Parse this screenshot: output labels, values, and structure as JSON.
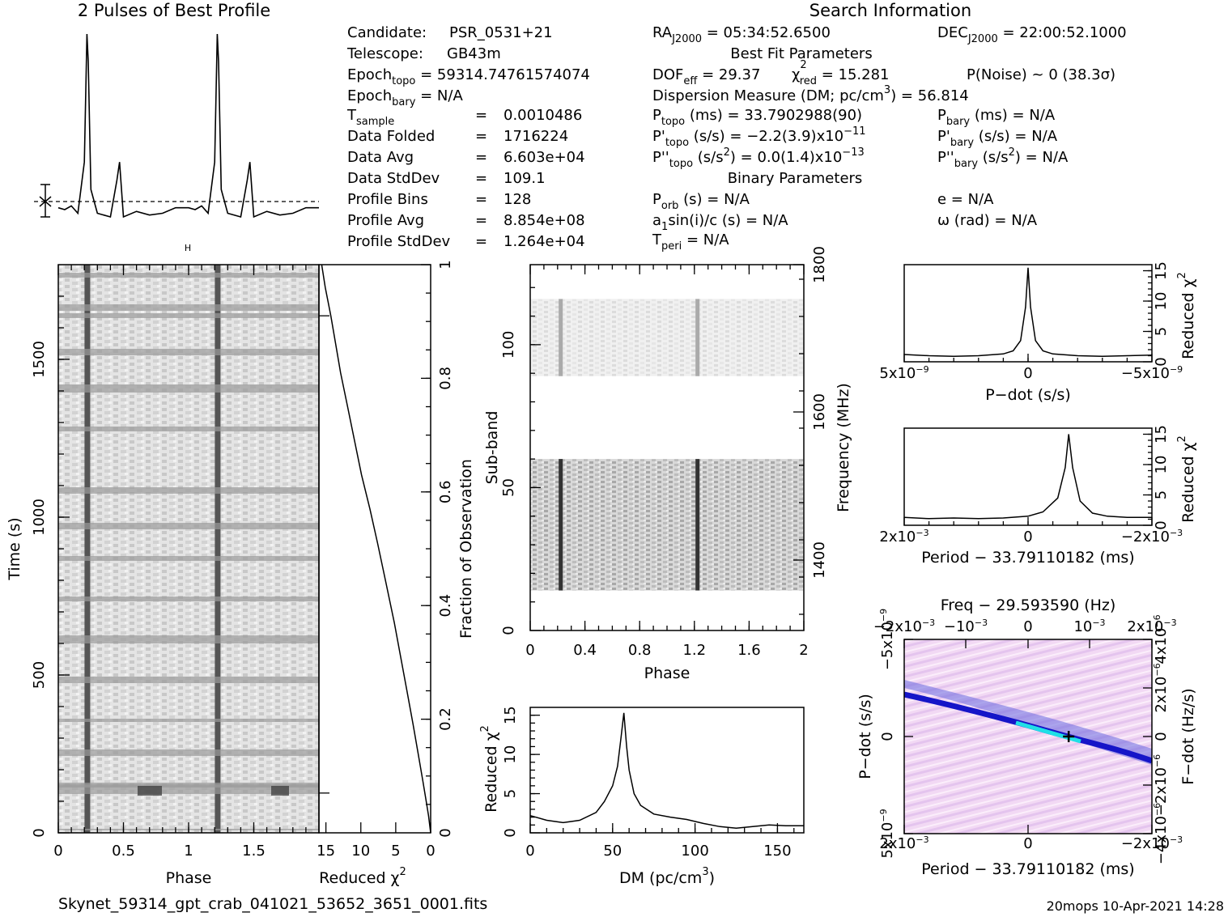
{
  "header": {
    "left_title": "2 Pulses of Best Profile",
    "right_title": "Search Information",
    "footer_file": "Skynet_59314_gpt_crab_041021_53652_3651_0001.fits",
    "footer_stamp": "20mops 10-Apr-2021 14:28"
  },
  "info": {
    "candidate": {
      "label": "Candidate:",
      "value": "PSR_0531+21"
    },
    "telescope": {
      "label": "Telescope:",
      "value": "GB43m"
    },
    "epoch_topo": {
      "base": "Epoch",
      "sub": "topo",
      "rest": " = 59314.74761574074"
    },
    "epoch_bary": {
      "base": "Epoch",
      "sub": "bary",
      "rest": " = N/A"
    },
    "t_sample": {
      "base": "T",
      "sub": "sample",
      "eq": "=",
      "value": "0.0010486"
    },
    "data_folded": {
      "label": "Data Folded",
      "eq": "=",
      "value": "1716224"
    },
    "data_avg": {
      "label": "Data Avg",
      "eq": "=",
      "value": "6.603e+04"
    },
    "data_stddev": {
      "label": "Data StdDev",
      "eq": "=",
      "value": "109.1"
    },
    "profile_bins": {
      "label": "Profile Bins",
      "eq": "=",
      "value": "128"
    },
    "profile_avg": {
      "label": "Profile Avg",
      "eq": "=",
      "value": "8.854e+08"
    },
    "profile_stddev": {
      "label": "Profile StdDev",
      "eq": "=",
      "value": "1.264e+04"
    },
    "ra": {
      "base": "RA",
      "sub": "J2000",
      "rest": " = 05:34:52.6500"
    },
    "dec": {
      "base": "DEC",
      "sub": "J2000",
      "rest": " = 22:00:52.1000"
    },
    "best_fit_header": "Best Fit Parameters",
    "dof": {
      "base": "DOF",
      "sub": "eff",
      "rest": " = 29.37"
    },
    "chi": {
      "base": "χ",
      "sup": "2",
      "sub": "red",
      "rest": " = 15.281"
    },
    "pnoise": "P(Noise) ~ 0    (38.3σ)",
    "dm_line": {
      "pre": "Dispersion Measure (DM; pc/cm",
      "sup": "3",
      "post": ") = 56.814"
    },
    "p_topo": {
      "base": "P",
      "sub": "topo",
      "rest": " (ms) =  33.7902988(90)"
    },
    "p_bary": {
      "base": "P",
      "sub": "bary",
      "rest": " (ms) = N/A"
    },
    "pd_topo": {
      "base": "P'",
      "sub": "topo",
      "rest": " (s/s) = −2.2(3.9)x10",
      "exp": "−11"
    },
    "pd_bary": {
      "base": "P'",
      "sub": "bary",
      "rest": " (s/s) = N/A"
    },
    "pdd_topo": {
      "base": "P''",
      "sub": "topo",
      "rest": " (s/s",
      "sup": "2",
      "rest2": ") = 0.0(1.4)x10",
      "exp": "−13"
    },
    "pdd_bary": {
      "base": "P''",
      "sub": "bary",
      "rest": " (s/s",
      "sup": "2",
      "rest2": ") = N/A"
    },
    "binary_header": "Binary Parameters",
    "porb": {
      "base": "P",
      "sub": "orb",
      "rest": " (s) = N/A"
    },
    "ecc": "e = N/A",
    "a1sini": {
      "base": "a",
      "sub": "1",
      "rest": "sin(i)/c (s) = N/A"
    },
    "omega": "ω (rad) = N/A",
    "tperi": {
      "base": "T",
      "sub": "peri",
      "rest": " = N/A"
    }
  },
  "chart_data": [
    {
      "id": "profile",
      "type": "line",
      "title": "2 Pulses of Best Profile",
      "x": [
        0,
        0.05,
        0.1,
        0.15,
        0.2,
        0.22,
        0.23,
        0.25,
        0.3,
        0.4,
        0.45,
        0.47,
        0.5,
        0.6,
        0.7,
        0.8,
        0.9,
        1.0,
        1.05,
        1.1,
        1.15,
        1.2,
        1.22,
        1.23,
        1.25,
        1.3,
        1.4,
        1.45,
        1.47,
        1.5,
        1.6,
        1.7,
        1.8,
        1.9,
        2.0
      ],
      "values": [
        0.05,
        0.04,
        0.06,
        0.02,
        0.3,
        1.0,
        0.85,
        0.15,
        0.02,
        0.0,
        0.2,
        0.3,
        0.0,
        0.03,
        0.01,
        0.02,
        0.05,
        0.05,
        0.04,
        0.06,
        0.02,
        0.3,
        1.0,
        0.85,
        0.15,
        0.02,
        0.0,
        0.2,
        0.3,
        0.0,
        0.03,
        0.01,
        0.02,
        0.05,
        0.05
      ]
    },
    {
      "id": "time-phase",
      "type": "heatmap",
      "xlabel": "Phase",
      "ylabel": "Time (s)",
      "xlim": [
        0,
        2
      ],
      "ylim": [
        0,
        1800
      ],
      "xticks": [
        "0",
        "0.5",
        "1",
        "1.5"
      ],
      "yticks": [
        "0",
        "500",
        "1000",
        "1500"
      ],
      "pulse_phases": [
        0.22,
        1.22
      ]
    },
    {
      "id": "reduced-chi-vs-time",
      "type": "line",
      "xlabel": "Reduced χ",
      "xlabel_sup": "2",
      "ylabel": "Fraction of Observation",
      "xlim": [
        16,
        0
      ],
      "ylim": [
        0,
        1
      ],
      "xticks": [
        "15",
        "10",
        "5",
        "0"
      ],
      "yticks": [
        "0.2",
        "0.4",
        "0.6",
        "0.8",
        "1"
      ],
      "x": [
        0,
        0.3,
        0.7,
        1.1,
        1.8,
        2.5,
        3.4,
        4.3,
        5.2,
        6.4,
        7.6,
        8.7,
        9.9,
        10.9,
        11.9,
        12.9,
        13.6,
        14.3,
        15.1,
        15.6
      ],
      "y": [
        0,
        0.03,
        0.06,
        0.09,
        0.14,
        0.19,
        0.25,
        0.31,
        0.37,
        0.44,
        0.51,
        0.57,
        0.63,
        0.69,
        0.75,
        0.81,
        0.86,
        0.91,
        0.96,
        1.0
      ]
    },
    {
      "id": "subband-phase",
      "type": "heatmap",
      "xlabel": "Phase",
      "ylabel": "Sub-band",
      "ylabel_right": "Frequency (MHz)",
      "xlim": [
        0,
        2
      ],
      "ylim": [
        0,
        128
      ],
      "xticks": [
        "0",
        "0.4",
        "0.8",
        "1.2",
        "1.6",
        "2"
      ],
      "yticks": [
        "0",
        "50",
        "100"
      ],
      "right_ticks": [
        "1400",
        "1600",
        "1800"
      ],
      "bands": [
        {
          "from": 14,
          "to": 60
        },
        {
          "from": 89,
          "to": 116
        }
      ]
    },
    {
      "id": "dm-curve",
      "type": "line",
      "xlabel": "DM (pc/cm",
      "xlabel_sup": "3",
      "xlabel_post": ")",
      "ylabel": "Reduced χ",
      "ylabel_sup": "2",
      "xlim": [
        0,
        166
      ],
      "ylim": [
        0,
        16
      ],
      "xticks": [
        "0",
        "50",
        "100",
        "150"
      ],
      "yticks": [
        "0",
        "5",
        "10",
        "15"
      ],
      "x": [
        0,
        10,
        20,
        30,
        40,
        45,
        50,
        53,
        55,
        56.8,
        58.5,
        60,
        63,
        67,
        75,
        85,
        95,
        105,
        115,
        125,
        135,
        145,
        155,
        166
      ],
      "y": [
        2.2,
        1.6,
        1.3,
        1.6,
        2.6,
        4.0,
        6.0,
        8.5,
        12.0,
        15.3,
        11.0,
        8.0,
        5.0,
        3.5,
        2.4,
        2.0,
        1.7,
        1.2,
        0.8,
        0.6,
        0.8,
        1.0,
        0.9,
        0.9
      ]
    },
    {
      "id": "pdot-curve",
      "type": "line",
      "xlabel": "P−dot (s/s)",
      "ylabel": "Reduced χ",
      "ylabel_sup": "2",
      "xlim": [
        5,
        -5
      ],
      "ylim": [
        0,
        16
      ],
      "xticks_base": [
        "5x10",
        "0",
        "−5x10"
      ],
      "xticks_exp": [
        "−9",
        "",
        "−9"
      ],
      "yticks": [
        "0",
        "5",
        "10",
        "15"
      ],
      "x": [
        5,
        4,
        3,
        2,
        1,
        0.6,
        0.3,
        0.1,
        0,
        -0.1,
        -0.3,
        -0.6,
        -1,
        -2,
        -3,
        -4,
        -5
      ],
      "y": [
        1.2,
        1.0,
        0.9,
        1.0,
        1.3,
        1.8,
        3.5,
        9.0,
        15.5,
        9.0,
        3.5,
        1.8,
        1.3,
        1.0,
        0.9,
        1.0,
        1.1
      ]
    },
    {
      "id": "period-curve",
      "type": "line",
      "xlabel": "Period − 33.79110182 (ms)",
      "ylabel": "Reduced χ",
      "ylabel_sup": "2",
      "xlim": [
        2.5,
        -2.5
      ],
      "ylim": [
        0,
        16
      ],
      "xticks_base": [
        "2x10",
        "0",
        "−2x10"
      ],
      "xticks_exp": [
        "−3",
        "",
        "−3"
      ],
      "yticks": [
        "0",
        "5",
        "10",
        "15"
      ],
      "x": [
        2.5,
        2,
        1.5,
        1,
        0.5,
        0,
        -0.3,
        -0.6,
        -0.75,
        -0.82,
        -0.9,
        -1.05,
        -1.3,
        -1.6,
        -2,
        -2.5
      ],
      "y": [
        1.3,
        1.1,
        1.2,
        1.1,
        1.2,
        1.5,
        2.2,
        4.5,
        9.5,
        15.0,
        9.5,
        4.0,
        2.0,
        1.5,
        1.3,
        1.3
      ]
    },
    {
      "id": "ppdot-plane",
      "type": "heatmap",
      "title": "Freq − 29.593590 (Hz)",
      "xlabel": "Period − 33.79110182 (ms)",
      "ylabel": "P−dot (s/s)",
      "ylabel_right": "F−dot (Hz/s)",
      "best_period_offset": -0.82,
      "best_pdot": 0,
      "top_ticks_base": [
        "−2x10",
        "−10",
        "0",
        "10",
        "2x10"
      ],
      "top_ticks_exp": [
        "−3",
        "−3",
        "",
        "−3",
        "−3"
      ],
      "bottom_ticks_base": [
        "2x10",
        "0",
        "−2x10"
      ],
      "bottom_ticks_exp": [
        "−3",
        "",
        "−3"
      ],
      "left_ticks_base": [
        "−5x10",
        "0",
        "5x10"
      ],
      "left_ticks_exp": [
        "−9",
        "",
        "−9"
      ],
      "right_ticks_base": [
        "4x10",
        "2x10",
        "0",
        "−2x10",
        "−4x10"
      ],
      "right_ticks_exp": [
        "−6",
        "−6",
        "",
        "−6",
        "−6"
      ]
    }
  ],
  "colors": {
    "ink": "#000000",
    "plane_bg": "#f0d8f4",
    "plane_ridge": "#1010c0",
    "plane_peak": "#20e0e0"
  }
}
